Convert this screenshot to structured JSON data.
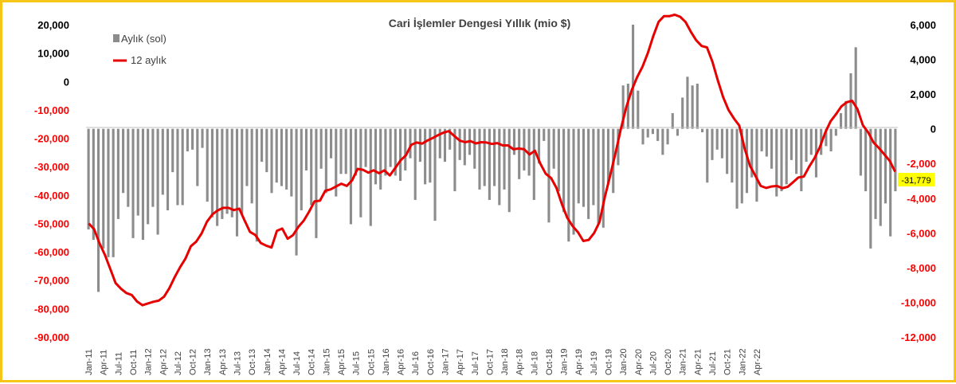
{
  "colors": {
    "frame": "#f5c518",
    "bar": "#8c8c8c",
    "line": "#e60000",
    "left_tick": "#000000",
    "right_tick": "#000000",
    "negative_tick": "#ff0000",
    "last_label_bg": "#ffff00"
  },
  "chart_data": {
    "type": "bar+line",
    "title": "Cari İşlemler Dengesi Yıllık (mio $)",
    "left_axis": {
      "ylim": [
        -90000,
        20000
      ],
      "ticks": [
        "20,000",
        "10,000",
        "0",
        "-10,000",
        "-20,000",
        "-30,000",
        "-40,000",
        "-50,000",
        "-60,000",
        "-70,000",
        "-80,000",
        "-90,000"
      ]
    },
    "right_axis": {
      "ylim": [
        -12000,
        6000
      ],
      "ticks": [
        "6,000",
        "4,000",
        "2,000",
        "0",
        "-2,000",
        "-4,000",
        "-6,000",
        "-8,000",
        "-10,000",
        "-12,000"
      ]
    },
    "x_tick_labels": [
      "Jan-11",
      "Apr-11",
      "Jul-11",
      "Oct-11",
      "Jan-12",
      "Apr-12",
      "Jul-12",
      "Oct-12",
      "Jan-13",
      "Apr-13",
      "Jul-13",
      "Oct-13",
      "Jan-14",
      "Apr-14",
      "Jul-14",
      "Oct-14",
      "Jan-15",
      "Apr-15",
      "Jul-15",
      "Oct-15",
      "Jan-16",
      "Apr-16",
      "Jul-16",
      "Oct-16",
      "Jan-17",
      "Apr-17",
      "Jul-17",
      "Oct-17",
      "Jan-18",
      "Apr-18",
      "Jul-18",
      "Oct-18",
      "Jan-19",
      "Apr-19",
      "Jul-19",
      "Oct-19",
      "Jan-20",
      "Apr-20",
      "Jul-20",
      "Oct-20",
      "Jan-21",
      "Apr-21",
      "Jul-21",
      "Oct-21",
      "Jan-22",
      "Apr-22"
    ],
    "legend": {
      "position": "top-left",
      "items": [
        {
          "label": "Aylık (sol)",
          "marker": "bar"
        },
        {
          "label": "12 aylık",
          "marker": "line"
        }
      ]
    },
    "series": [
      {
        "name": "Aylık (sol)",
        "axis": "right",
        "type": "bar",
        "values": [
          -5800,
          -6400,
          -9400,
          -6900,
          -7400,
          -7400,
          -5200,
          -3700,
          -4500,
          -6300,
          -5000,
          -6400,
          -5500,
          -4500,
          -6100,
          -3800,
          -4700,
          -2500,
          -4400,
          -4400,
          -1300,
          -1200,
          -3300,
          -1100,
          -4200,
          -5100,
          -5600,
          -5200,
          -4900,
          -5100,
          -6200,
          -4900,
          -3300,
          -4300,
          -6500,
          -1900,
          -2500,
          -3700,
          -3100,
          -3300,
          -3500,
          -3900,
          -7300,
          -4700,
          -2400,
          -4400,
          -6300,
          -2300,
          -3700,
          -1700,
          -3900,
          -2600,
          -2600,
          -5500,
          -2700,
          -5100,
          -2200,
          -5600,
          -3200,
          -3500,
          -2700,
          -2200,
          -2700,
          -3000,
          -2400,
          -1700,
          -4100,
          -1900,
          -3200,
          -3100,
          -5300,
          -1700,
          -1900,
          -1200,
          -3600,
          -1800,
          -2100,
          -1500,
          -2300,
          -3500,
          -3300,
          -4100,
          -3300,
          -4400,
          -3500,
          -4800,
          -1500,
          -2900,
          -2400,
          -2700,
          -4100,
          -2000,
          -700,
          -5400,
          -2300,
          -3600,
          -4800,
          -6500,
          -6100,
          -4300,
          -4500,
          -5200,
          -4400,
          -5500,
          -5700,
          -3200,
          -3700,
          -2100,
          2500,
          2600,
          6000,
          2200,
          -900,
          -500,
          -300,
          -700,
          -1500,
          -900,
          900,
          -400,
          1800,
          3000,
          2500,
          2600,
          -200,
          -3100,
          -1800,
          -1200,
          -1700,
          -2600,
          -3100,
          -4600,
          -4300,
          -3700,
          -2800,
          -4200,
          -1300,
          -1600,
          -2300,
          -3900,
          -3600,
          -3200,
          -1800,
          -2600,
          -3600,
          -1900,
          -1500,
          -2800,
          -1500,
          -1000,
          -1300,
          -400,
          900,
          1600,
          3200,
          4700,
          -2700,
          -3600,
          -6900,
          -5200,
          -5600,
          -4300,
          -6200,
          -3600
        ]
      },
      {
        "name": "12 aylık",
        "axis": "left",
        "type": "line",
        "values": [
          -50000,
          -52000,
          -57000,
          -61000,
          -66000,
          -71000,
          -73000,
          -74500,
          -75200,
          -77500,
          -78800,
          -78200,
          -77600,
          -77200,
          -75800,
          -72800,
          -68900,
          -65400,
          -62400,
          -58000,
          -56400,
          -53500,
          -49400,
          -46800,
          -45400,
          -44500,
          -44500,
          -45300,
          -44800,
          -49000,
          -53000,
          -54100,
          -56900,
          -57800,
          -58500,
          -52600,
          -51800,
          -55400,
          -54100,
          -51200,
          -49000,
          -45800,
          -42200,
          -42000,
          -38500,
          -38000,
          -37000,
          -36000,
          -36800,
          -34800,
          -30800,
          -31100,
          -32100,
          -31300,
          -32300,
          -31300,
          -33100,
          -30500,
          -27800,
          -26000,
          -22300,
          -21500,
          -21900,
          -20800,
          -19900,
          -18900,
          -18000,
          -17500,
          -19200,
          -20800,
          -21400,
          -21000,
          -21800,
          -21400,
          -21500,
          -22000,
          -21700,
          -22500,
          -22500,
          -23900,
          -23600,
          -23900,
          -25700,
          -24400,
          -28900,
          -32500,
          -34000,
          -37500,
          -43100,
          -48000,
          -50900,
          -53100,
          -56200,
          -55800,
          -53400,
          -49500,
          -40700,
          -33000,
          -25100,
          -16500,
          -9000,
          -3000,
          1500,
          5200,
          10000,
          16000,
          21000,
          23000,
          23000,
          23500,
          22800,
          21000,
          17500,
          14500,
          12500,
          12000,
          7000,
          500,
          -5500,
          -10000,
          -13000,
          -15500,
          -23600,
          -29700,
          -33200,
          -36800,
          -37500,
          -37000,
          -36800,
          -37600,
          -37100,
          -35500,
          -33800,
          -33500,
          -30000,
          -27000,
          -23100,
          -18000,
          -14000,
          -11500,
          -8800,
          -7300,
          -6800,
          -9800,
          -15400,
          -18000,
          -21500,
          -23500,
          -25700,
          -28000,
          -31779
        ]
      }
    ],
    "last_value_label": "-31,779"
  }
}
